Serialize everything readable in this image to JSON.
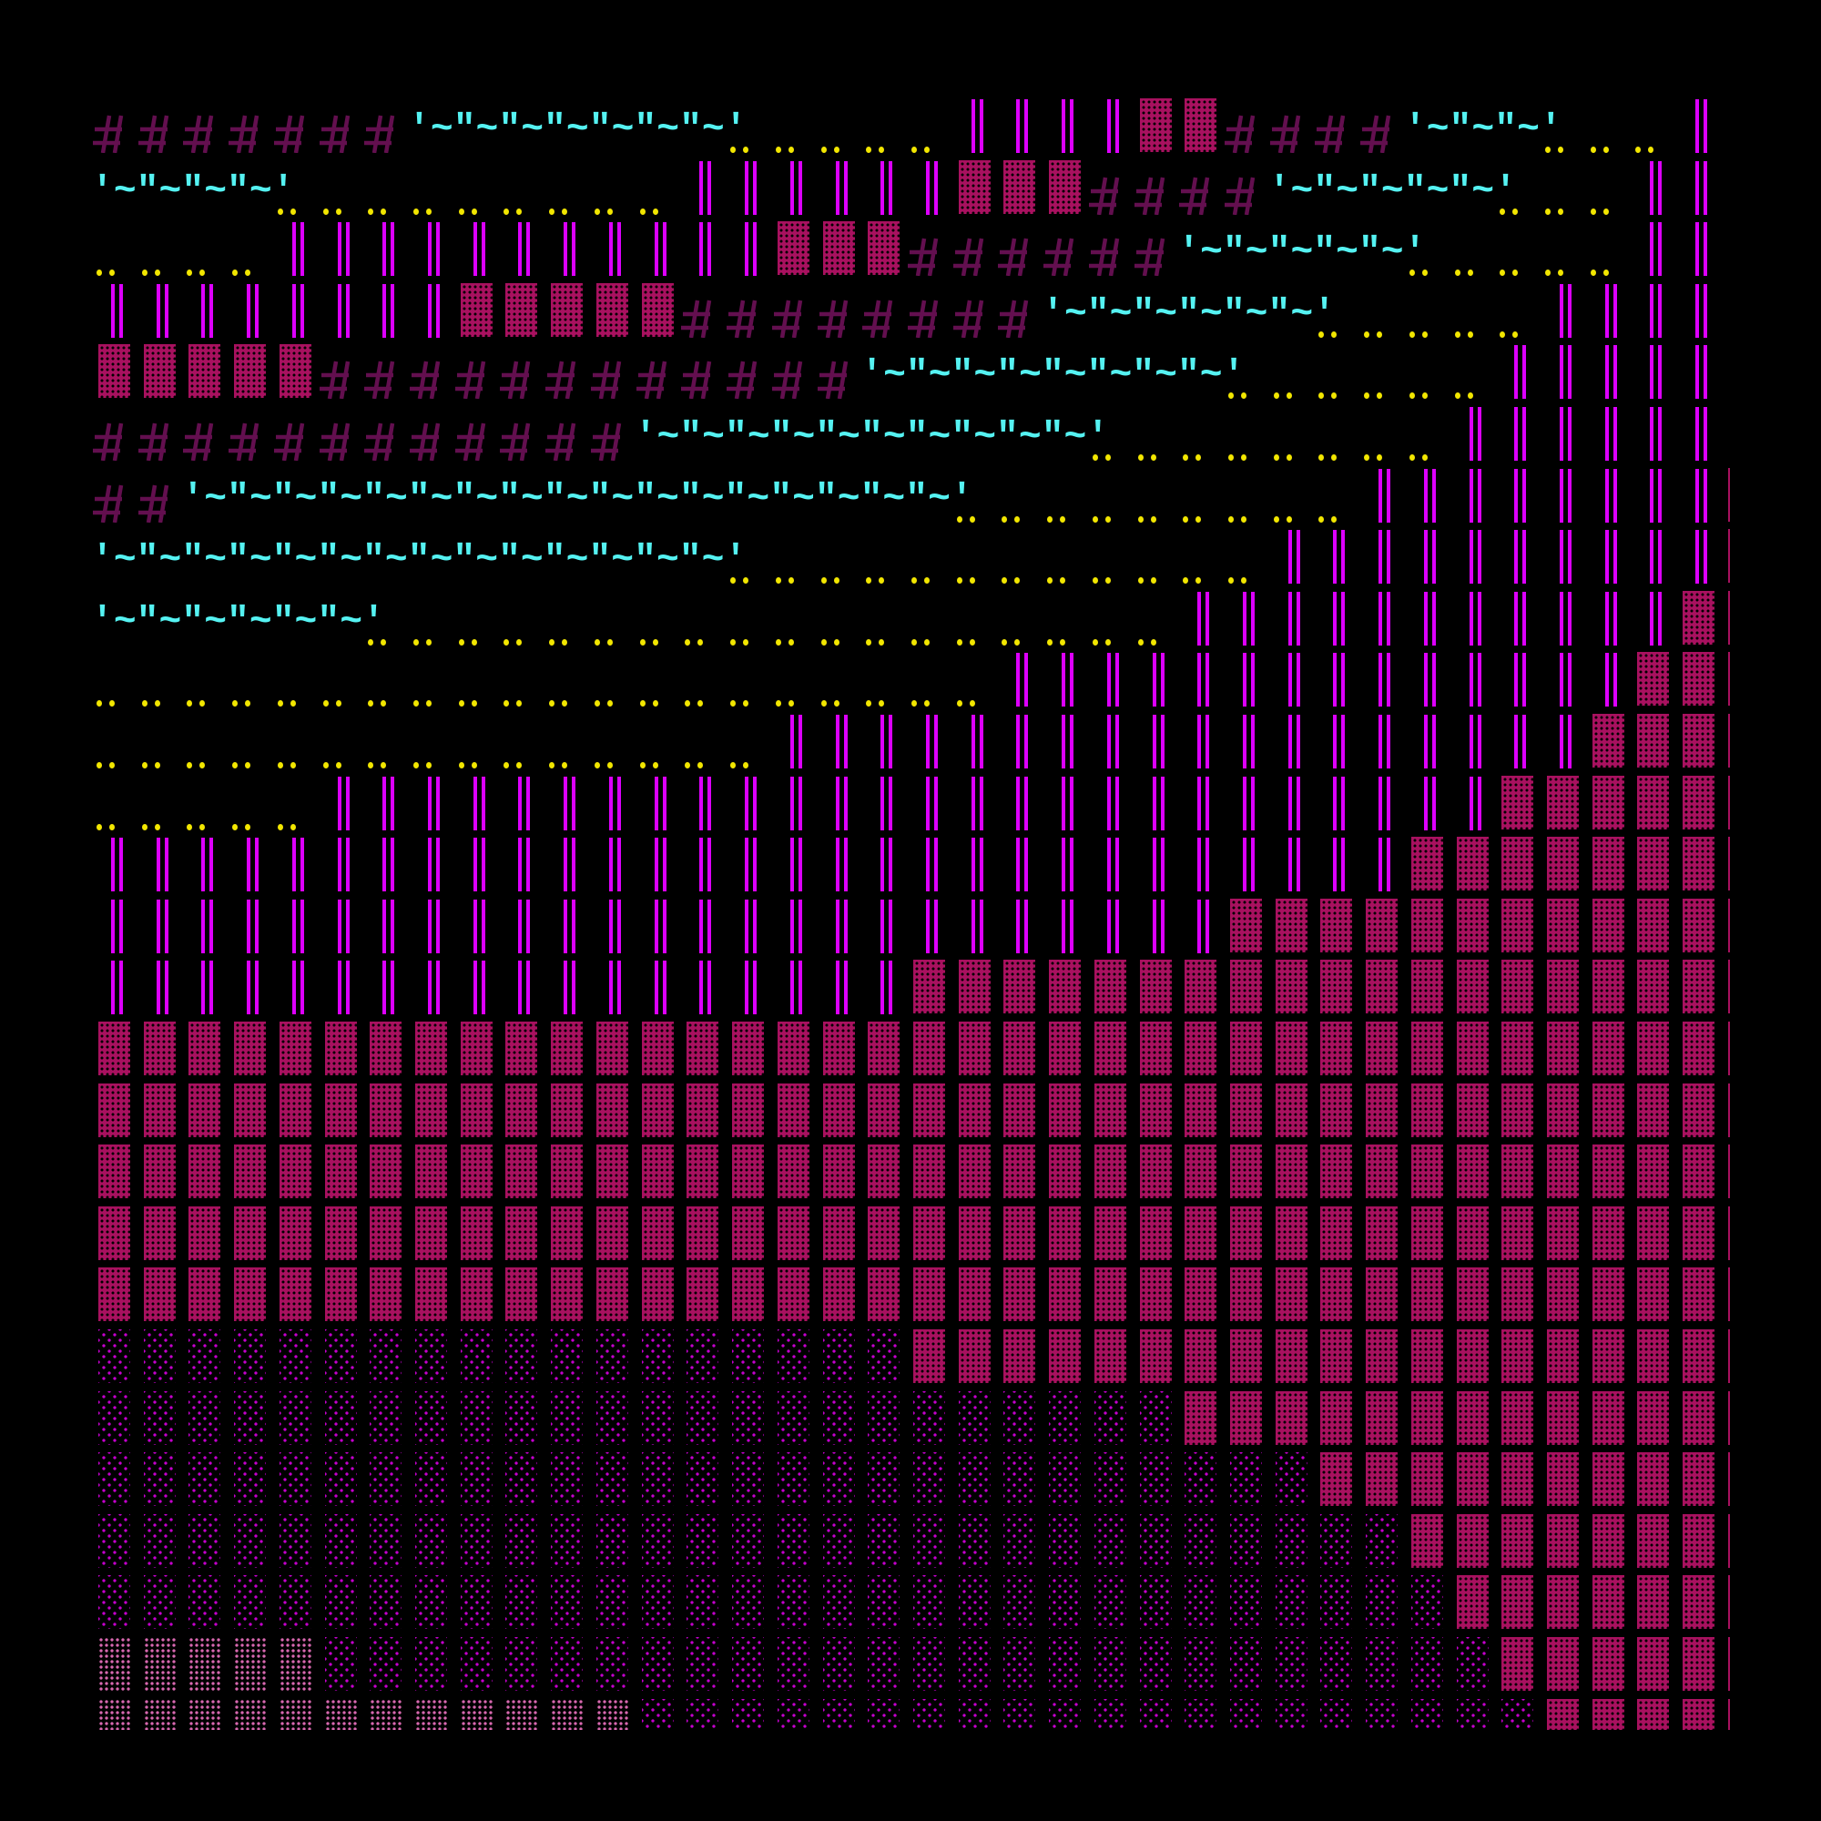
{
  "glyphs": {
    "hash": "#",
    "cyan": "'~\"",
    "dots": "..",
    "double_bar": "║",
    "dark_shade": "▓",
    "light_shade": "░",
    "medium_shade": "▒"
  },
  "colors": {
    "background": "#000000",
    "hash": "#630f4f",
    "cyan": "#55f2f2",
    "dots": "#f2e600",
    "double_bar": "#dd00ff",
    "dark_shade": "#a8115f",
    "light_shade": "#c400cc",
    "medium_shade": "#d868b0"
  },
  "rows": [
    [
      [
        " ",
        20
      ],
      [
        "..",
        3
      ],
      [
        " ",
        11
      ],
      [
        "..",
        2
      ]
    ],
    [
      [
        "#",
        7
      ],
      [
        "c",
        7
      ],
      [
        "..",
        5
      ],
      [
        "║",
        4
      ],
      [
        "▓",
        2
      ],
      [
        "#",
        4
      ],
      [
        "c",
        3
      ],
      [
        "..",
        3
      ],
      [
        "║",
        1
      ]
    ],
    [
      [
        "c",
        4
      ],
      [
        "..",
        9
      ],
      [
        "║",
        6
      ],
      [
        "▓",
        3
      ],
      [
        "#",
        4
      ],
      [
        "c",
        5
      ],
      [
        "..",
        3
      ],
      [
        "║",
        2
      ]
    ],
    [
      [
        "..",
        4
      ],
      [
        "║",
        11
      ],
      [
        "▓",
        3
      ],
      [
        "#",
        6
      ],
      [
        "c",
        5
      ],
      [
        "..",
        5
      ],
      [
        "║",
        2
      ]
    ],
    [
      [
        "║",
        8
      ],
      [
        "▓",
        5
      ],
      [
        "#",
        8
      ],
      [
        "c",
        6
      ],
      [
        "..",
        5
      ],
      [
        "║",
        4
      ]
    ],
    [
      [
        "▓",
        5
      ],
      [
        "#",
        12
      ],
      [
        "c",
        8
      ],
      [
        "..",
        6
      ],
      [
        "║",
        5
      ]
    ],
    [
      [
        "#",
        12
      ],
      [
        "c",
        10
      ],
      [
        "..",
        8
      ],
      [
        "║",
        6
      ]
    ],
    [
      [
        "#",
        2
      ],
      [
        "c",
        17
      ],
      [
        "..",
        9
      ],
      [
        "║",
        8
      ],
      [
        "▓",
        1
      ]
    ],
    [
      [
        "c",
        14
      ],
      [
        "..",
        12
      ],
      [
        "║",
        10
      ],
      [
        "▓",
        1
      ]
    ],
    [
      [
        "c",
        6
      ],
      [
        "..",
        18
      ],
      [
        "║",
        11
      ],
      [
        "▓",
        2
      ]
    ],
    [
      [
        "..",
        20
      ],
      [
        "║",
        14
      ],
      [
        "▓",
        3
      ]
    ],
    [
      [
        "..",
        15
      ],
      [
        "║",
        18
      ],
      [
        "▓",
        4
      ]
    ],
    [
      [
        "..",
        5
      ],
      [
        "║",
        26
      ],
      [
        "▓",
        6
      ]
    ],
    [
      [
        "║",
        29
      ],
      [
        "▓",
        8
      ]
    ],
    [
      [
        "║",
        25
      ],
      [
        "▓",
        12
      ]
    ],
    [
      [
        "║",
        18
      ],
      [
        "▓",
        19
      ]
    ],
    [
      [
        "▓",
        37
      ]
    ],
    [
      [
        "▓",
        37
      ]
    ],
    [
      [
        "▓",
        37
      ]
    ],
    [
      [
        "▓",
        37
      ]
    ],
    [
      [
        "▓",
        37
      ]
    ],
    [
      [
        "░",
        18
      ],
      [
        "▓",
        19
      ]
    ],
    [
      [
        "░",
        24
      ],
      [
        "▓",
        13
      ]
    ],
    [
      [
        "░",
        27
      ],
      [
        "▓",
        10
      ]
    ],
    [
      [
        "░",
        29
      ],
      [
        "▓",
        8
      ]
    ],
    [
      [
        "░",
        30
      ],
      [
        "▓",
        7
      ]
    ],
    [
      [
        "▒",
        5
      ],
      [
        "░",
        26
      ],
      [
        "▓",
        6
      ]
    ],
    [
      [
        "▒",
        12
      ],
      [
        "░",
        20
      ],
      [
        "▓",
        5
      ]
    ]
  ]
}
